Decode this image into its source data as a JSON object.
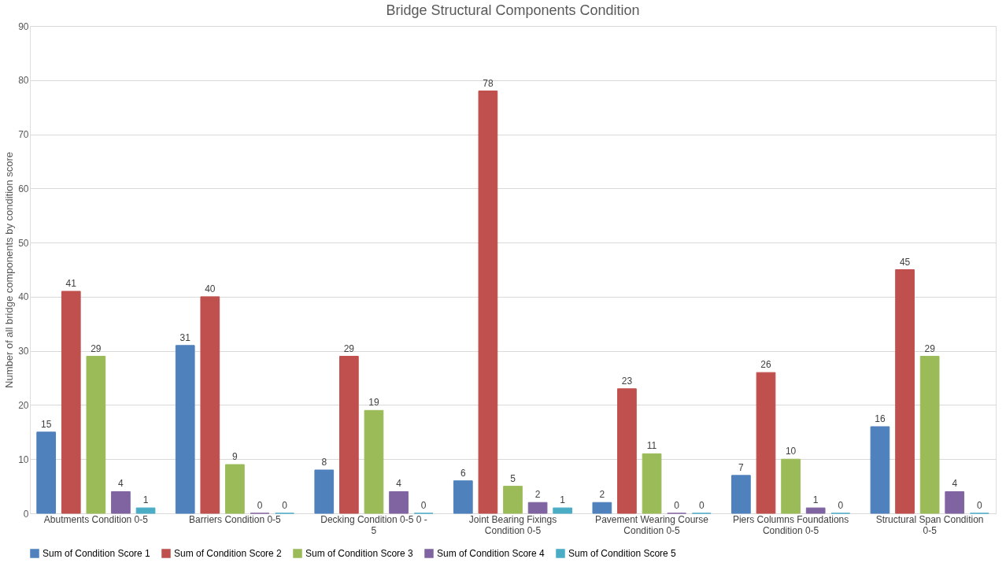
{
  "chart_data": {
    "type": "bar",
    "title": "Bridge Structural Components Condition",
    "ylabel": "Number of all bridge components by condition score",
    "categories": [
      "Abutments Condition 0-5",
      "Barriers Condition 0-5",
      "Decking Condition 0-5 0 - 5",
      "Joint Bearing Fixings Condition 0-5",
      "Pavement Wearing Course Condition 0-5",
      "Piers Columns Foundations Condition 0-5",
      "Structural Span Condition 0-5"
    ],
    "series": [
      {
        "name": "Sum of Condition Score 1",
        "color": "#4f81bd",
        "values": [
          15,
          31,
          8,
          6,
          2,
          7,
          16
        ]
      },
      {
        "name": "Sum of Condition Score 2",
        "color": "#c0504d",
        "values": [
          41,
          40,
          29,
          78,
          23,
          26,
          45
        ]
      },
      {
        "name": "Sum of Condition Score 3",
        "color": "#9bbb59",
        "values": [
          29,
          9,
          19,
          5,
          11,
          10,
          29
        ]
      },
      {
        "name": "Sum of Condition Score 4",
        "color": "#8064a2",
        "values": [
          4,
          0,
          4,
          2,
          0,
          1,
          4
        ]
      },
      {
        "name": "Sum of Condition Score 5",
        "color": "#4bacc6",
        "values": [
          1,
          0,
          0,
          1,
          0,
          0,
          0
        ]
      }
    ],
    "ylim": [
      0,
      90
    ],
    "yticks": [
      0,
      10,
      20,
      30,
      40,
      50,
      60,
      70,
      80,
      90
    ],
    "grid": "y",
    "legend": "bottom",
    "data_labels": true
  }
}
